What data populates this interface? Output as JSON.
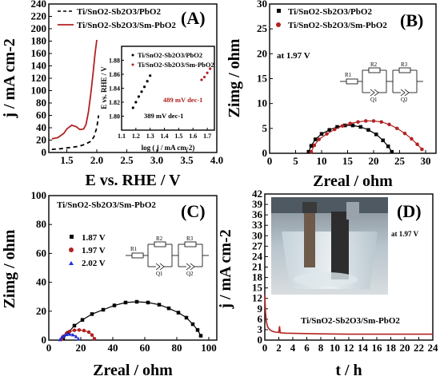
{
  "chart_data": [
    {
      "panel": "(A)",
      "type": "line",
      "xlabel": "E vs. RHE / V",
      "ylabel": "j / mA cm-2",
      "xlim": [
        1.2,
        4.0
      ],
      "ylim": [
        0,
        240
      ],
      "xticks": [
        "1.5",
        "2.0",
        "2.5",
        "3.0",
        "3.5",
        "4.0"
      ],
      "yticks": [
        "0",
        "20",
        "40",
        "60",
        "80",
        "100",
        "120",
        "140",
        "160",
        "180",
        "200",
        "220",
        "240"
      ],
      "legend": "top-left",
      "series": [
        {
          "name": "Ti/SnO2-Sb2O3/PbO2",
          "style": "dashed",
          "color": "#000000",
          "x": [
            1.25,
            1.4,
            1.55,
            1.7,
            1.8,
            1.9,
            1.95,
            2.0,
            2.03
          ],
          "y": [
            5,
            6,
            8,
            10,
            13,
            18,
            25,
            40,
            60
          ]
        },
        {
          "name": "Ti/SnO2-Sb2O3/Sm-PbO2",
          "style": "solid",
          "color": "#b22222",
          "x": [
            1.25,
            1.35,
            1.45,
            1.5,
            1.58,
            1.65,
            1.72,
            1.78,
            1.82,
            1.86,
            1.9,
            1.94,
            1.97,
            2.0
          ],
          "y": [
            22,
            24,
            31,
            38,
            44,
            42,
            37,
            38,
            45,
            65,
            95,
            130,
            160,
            182
          ]
        }
      ],
      "inset": {
        "type": "scatter",
        "xlabel": "log ( j / mA cm-2)",
        "ylabel": "E vs. RHE / V",
        "xlim": [
          1.1,
          1.75
        ],
        "ylim": [
          1.78,
          1.9
        ],
        "xticks": [
          "1.1",
          "1.2",
          "1.3",
          "1.4",
          "1.5",
          "1.6",
          "1.7"
        ],
        "yticks": [
          "1.80",
          "1.82",
          "1.84",
          "1.86",
          "1.88"
        ],
        "series": [
          {
            "name": "Ti/SnO2-Sb2O3/PbO2",
            "color": "#000000",
            "x": [
              1.18,
              1.2,
              1.22,
              1.24,
              1.26,
              1.28,
              1.3
            ],
            "y": [
              1.812,
              1.82,
              1.828,
              1.835,
              1.842,
              1.85,
              1.858
            ]
          },
          {
            "name": "Ti/SnO2-Sb2O3/Sm-PbO2",
            "color": "#b22222",
            "x": [
              1.66,
              1.68,
              1.7,
              1.72
            ],
            "y": [
              1.852,
              1.856,
              1.862,
              1.868
            ]
          }
        ],
        "annotations": [
          "389 mV dec-1",
          "489 mV dec-1"
        ]
      }
    },
    {
      "panel": "(B)",
      "type": "scatter",
      "xlabel": "Zreal / ohm",
      "ylabel": "Zimg / ohm",
      "xlim": [
        0,
        32
      ],
      "ylim": [
        0,
        30
      ],
      "xticks": [
        "0",
        "5",
        "10",
        "15",
        "20",
        "25",
        "30"
      ],
      "yticks": [
        "0",
        "5",
        "10",
        "15",
        "20",
        "25",
        "30"
      ],
      "legend": "top-left",
      "annotation": "at 1.97 V",
      "circuit_labels": [
        "R1",
        "R2",
        "R3",
        "Q1",
        "Q2"
      ],
      "series": [
        {
          "name": "Ti/SnO2-Sb2O3/PbO2",
          "marker": "square",
          "color": "#000000",
          "x": [
            7.5,
            8,
            8.8,
            10,
            11.5,
            13,
            14.5,
            16,
            17.5,
            19,
            20.5,
            21.8,
            22.8,
            23.5
          ],
          "y": [
            0.3,
            1.5,
            2.8,
            3.9,
            4.7,
            5.3,
            5.6,
            5.6,
            5.3,
            4.7,
            3.8,
            2.6,
            1.4,
            0.3
          ]
        },
        {
          "name": "Ti/SnO2-Sb2O3/Sm-PbO2",
          "marker": "circle",
          "color": "#b22222",
          "x": [
            8,
            8.6,
            9.5,
            11,
            12.5,
            14,
            15.5,
            17,
            18.5,
            20,
            21.5,
            23,
            24.5,
            26,
            27.3,
            28.4,
            29.3
          ],
          "y": [
            0.3,
            1.6,
            2.8,
            3.9,
            4.8,
            5.5,
            6,
            6.3,
            6.5,
            6.5,
            6.3,
            5.8,
            5,
            4,
            2.9,
            1.8,
            0.8
          ]
        }
      ]
    },
    {
      "panel": "(C)",
      "title": "Ti/SnO2-Sb2O3/Sm-PbO2",
      "type": "scatter",
      "xlabel": "Zreal / ohm",
      "ylabel": "Zimg / ohm",
      "xlim": [
        0,
        105
      ],
      "ylim": [
        0,
        100
      ],
      "xticks": [
        "0",
        "20",
        "40",
        "60",
        "80",
        "100"
      ],
      "yticks": [
        "0",
        "20",
        "40",
        "60",
        "80",
        "100"
      ],
      "legend": "left",
      "circuit_labels": [
        "R1",
        "R2",
        "R3",
        "Q1",
        "Q2"
      ],
      "series": [
        {
          "name": "1.87 V",
          "marker": "square",
          "color": "#000000",
          "x": [
            9,
            12,
            16,
            21,
            27,
            34,
            41,
            48,
            55,
            62,
            69,
            75,
            81,
            86,
            90,
            93,
            95
          ],
          "y": [
            1,
            5,
            10,
            14,
            18,
            21,
            24,
            26,
            26.5,
            26,
            24.5,
            22,
            19,
            15.5,
            11,
            7,
            3
          ]
        },
        {
          "name": "1.97 V",
          "marker": "circle",
          "color": "#b22222",
          "x": [
            8,
            9,
            11,
            13,
            16,
            19,
            22,
            25,
            27,
            28.5
          ],
          "y": [
            0.5,
            2.5,
            4.5,
            6,
            6.8,
            7,
            6.6,
            5.5,
            3.5,
            1
          ]
        },
        {
          "name": "2.02 V",
          "marker": "triangle",
          "color": "#1f2fd8",
          "x": [
            7,
            8,
            9.5,
            11,
            13,
            15,
            17,
            18.5
          ],
          "y": [
            0.5,
            2,
            3.2,
            4,
            4.2,
            3.8,
            2.6,
            1
          ]
        }
      ]
    },
    {
      "panel": "(D)",
      "type": "line",
      "xlabel": "t / h",
      "ylabel": "j / mA cm-2",
      "xlim": [
        0,
        24
      ],
      "ylim": [
        0,
        42
      ],
      "xticks": [
        "0",
        "2",
        "4",
        "6",
        "8",
        "10",
        "12",
        "14",
        "16",
        "18",
        "20",
        "22",
        "24"
      ],
      "yticks": [
        "0",
        "3",
        "6",
        "9",
        "12",
        "15",
        "18",
        "21",
        "24",
        "27",
        "30",
        "33",
        "36",
        "39",
        "42"
      ],
      "annotation": "at 1.97 V",
      "series_label": "Ti/SnO2-Sb2O3/Sm-PbO2",
      "series": [
        {
          "name": "Ti/SnO2-Sb2O3/Sm-PbO2",
          "color": "#b22222",
          "x": [
            0,
            0.1,
            0.2,
            0.4,
            0.7,
            1,
            1.5,
            2,
            2.1,
            2.2,
            3,
            5,
            8,
            12,
            16,
            20,
            24
          ],
          "y": [
            13,
            8,
            5.5,
            3.8,
            3,
            2.6,
            2.3,
            2.2,
            4,
            2.1,
            2,
            1.9,
            1.8,
            1.7,
            1.7,
            1.7,
            1.7
          ]
        }
      ]
    }
  ],
  "colors": {
    "black": "#000000",
    "red": "#b22222",
    "blue": "#1f2fd8"
  }
}
